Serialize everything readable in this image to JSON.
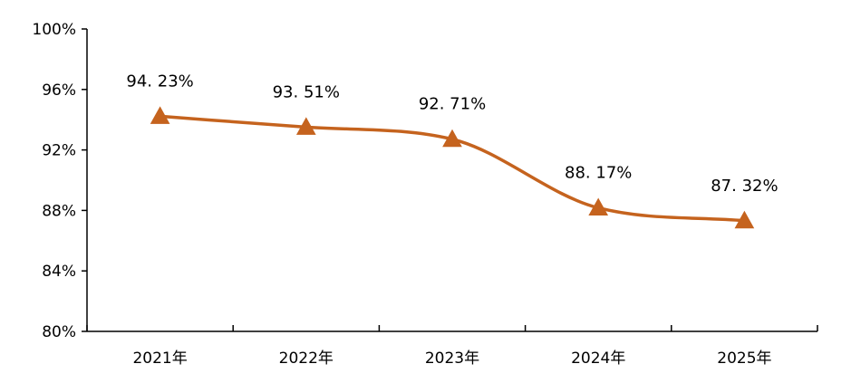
{
  "chart_data": {
    "type": "line",
    "categories": [
      "2021年",
      "2022年",
      "2023年",
      "2024年",
      "2025年"
    ],
    "series": [
      {
        "values": [
          94.23,
          93.51,
          92.71,
          88.17,
          87.32
        ],
        "labels": [
          "94. 23%",
          "93. 51%",
          "92. 71%",
          "88. 17%",
          "87. 32%"
        ]
      }
    ],
    "ylim": [
      80,
      100
    ],
    "yticks": [
      80,
      84,
      88,
      92,
      96,
      100
    ],
    "ytick_labels": [
      "80%",
      "84%",
      "88%",
      "92%",
      "96%",
      "100%"
    ],
    "line_style": "smooth",
    "marker": "triangle",
    "grid": false,
    "legend": "none",
    "colors": {
      "series": "#C5631E",
      "axis": "#000000"
    }
  }
}
